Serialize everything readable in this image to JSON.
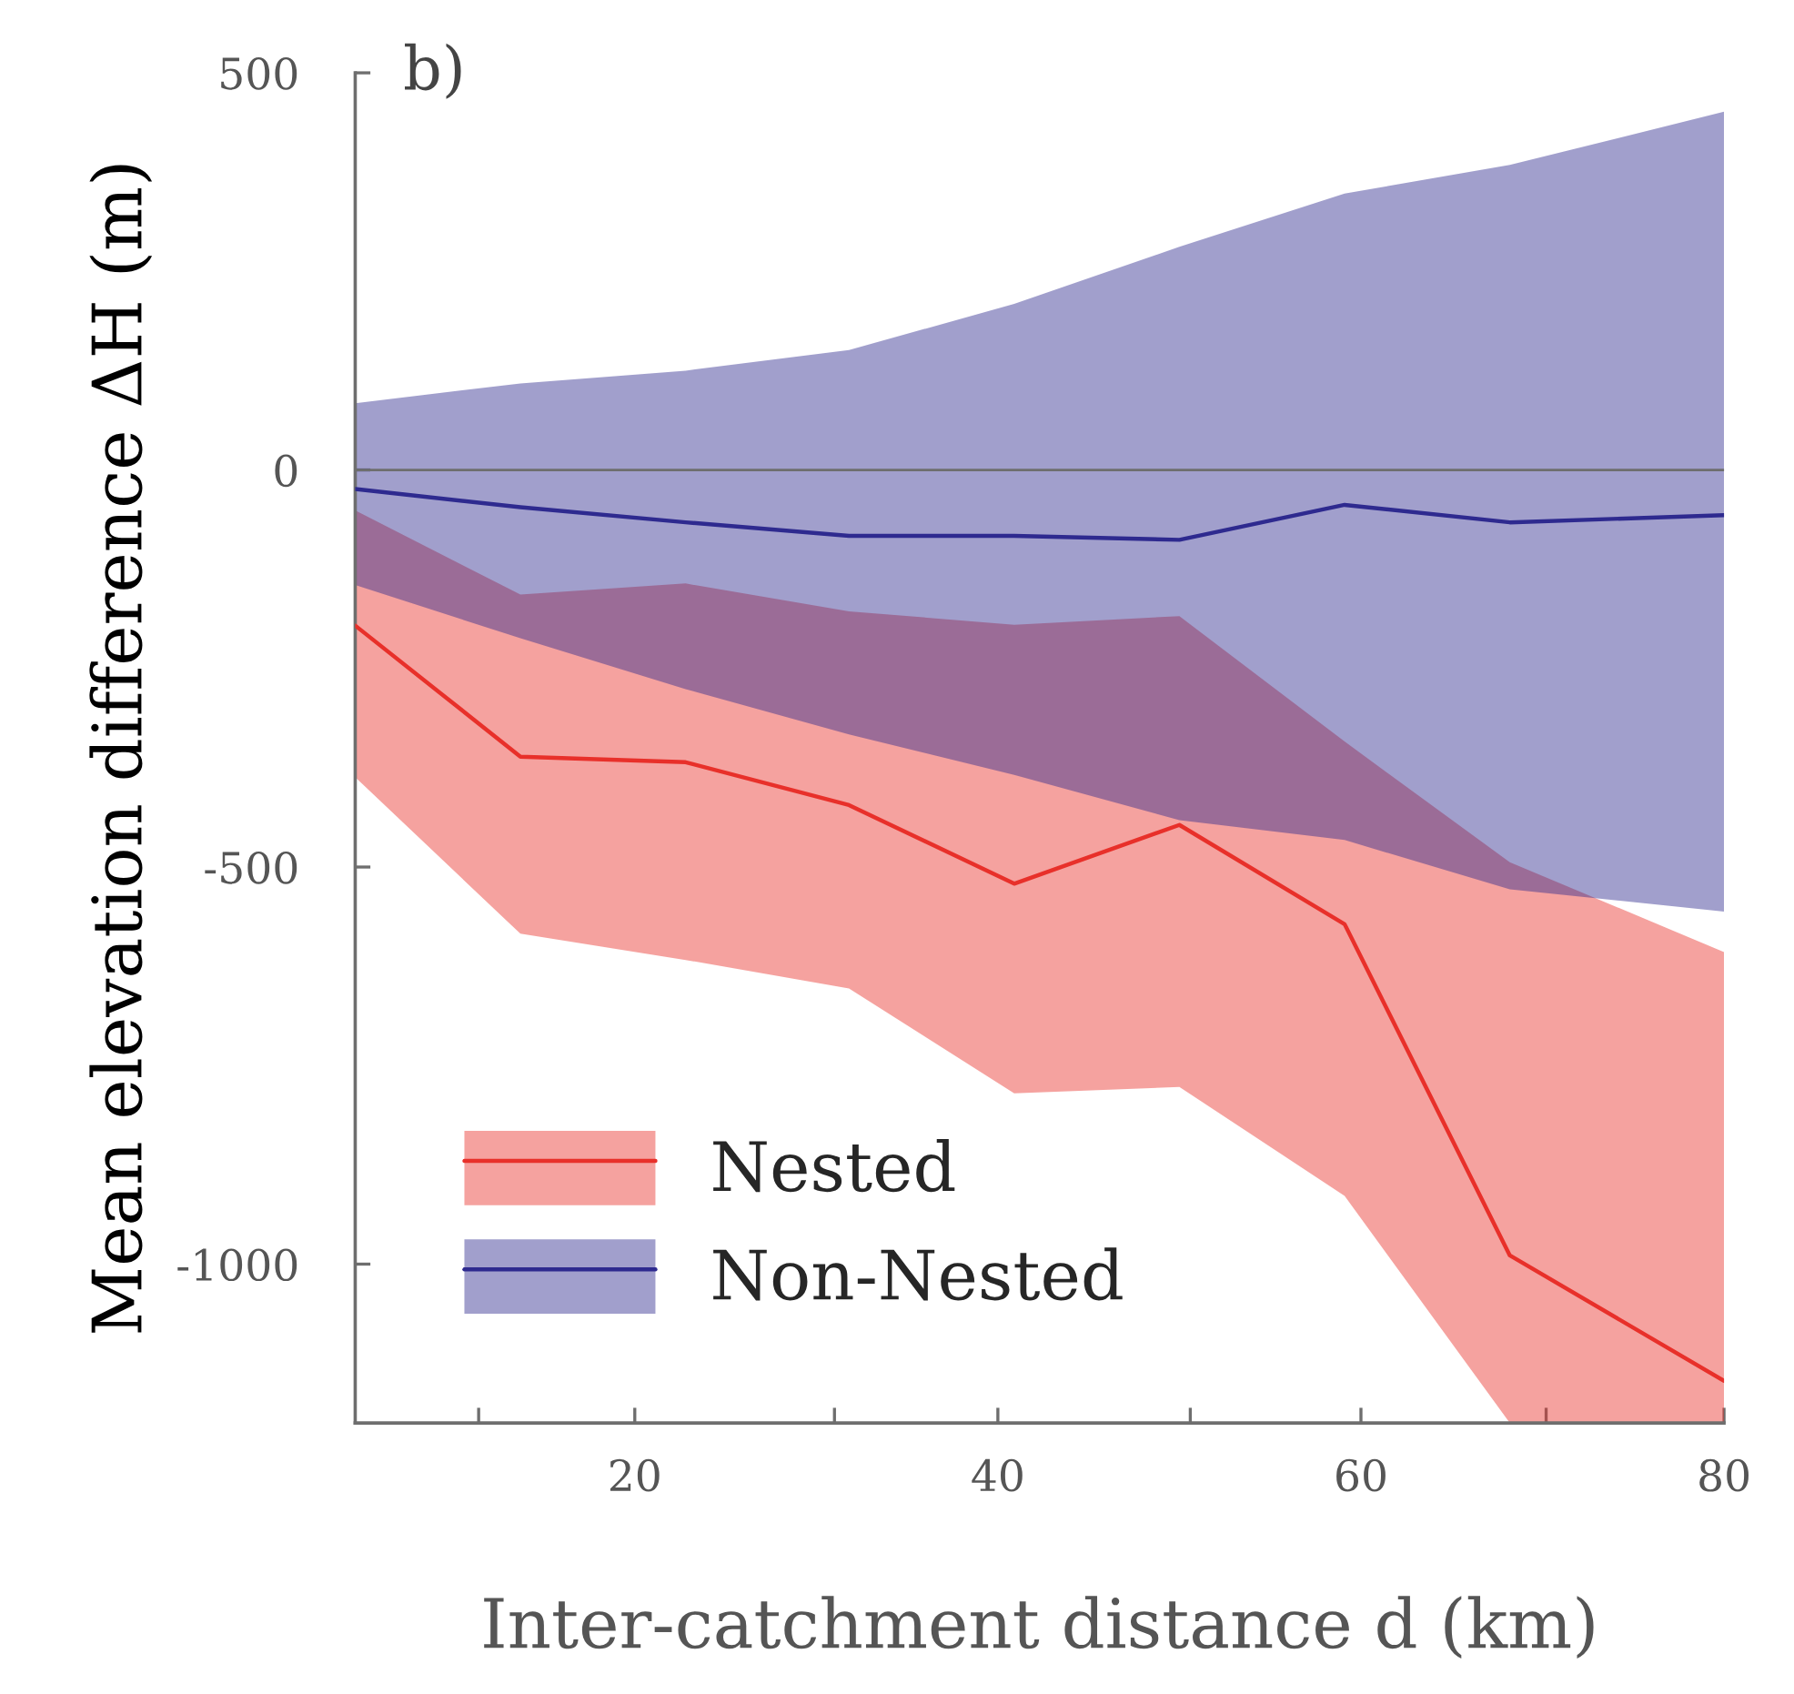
{
  "chart_data": {
    "type": "line",
    "title": "b)",
    "xlabel": "Inter-catchment distance d (km)",
    "ylabel": "Mean elevation difference ΔH (m)",
    "x": [
      4.6,
      13.7,
      22.8,
      31.8,
      40.9,
      50.0,
      59.1,
      68.2,
      80
    ],
    "series": [
      {
        "name": "Nested",
        "color": "#e8302a",
        "values": [
          -196,
          -361,
          -368,
          -422,
          -521,
          -447,
          -572,
          -989,
          -1147
        ],
        "lower": [
          -387,
          -584,
          -617,
          -653,
          -785,
          -777,
          -914,
          -1200,
          -1200
        ],
        "upper": [
          -51,
          -157,
          -143,
          -178,
          -195,
          -184,
          -342,
          -494,
          -607
        ]
      },
      {
        "name": "Non-Nested",
        "color": "#2e2a8f",
        "values": [
          -24,
          -47,
          -66,
          -83,
          -83,
          -88,
          -44,
          -66,
          -57
        ],
        "lower": [
          -145,
          -212,
          -276,
          -333,
          -384,
          -441,
          -466,
          -528,
          -556
        ],
        "upper": [
          84,
          109,
          125,
          151,
          209,
          281,
          348,
          384,
          451
        ]
      }
    ],
    "xlim": [
      4.6,
      80
    ],
    "ylim": [
      -1200,
      500
    ],
    "xticks": [
      {
        "value": 11.4,
        "label": null
      },
      20,
      {
        "value": 31.0,
        "label": null
      },
      40,
      {
        "value": 50.6,
        "label": null
      },
      60,
      {
        "value": 70.2,
        "label": null
      },
      80
    ],
    "yticks": [
      {
        "value": -1000,
        "label": "-1000"
      },
      {
        "value": -500,
        "label": "-500"
      },
      0,
      500
    ],
    "ref_lines": [
      {
        "axis": "y",
        "value": 0,
        "color": "#6e6e6e"
      }
    ],
    "legend": "bottom left",
    "grid": false,
    "line_style": "solid",
    "marker": "none"
  }
}
